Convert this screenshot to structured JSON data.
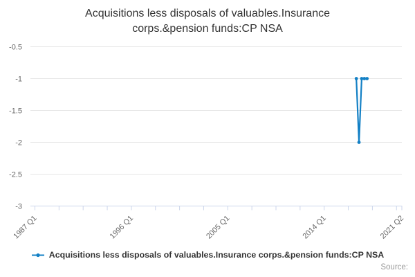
{
  "title": {
    "text": "Acquisitions less disposals of valuables.Insurance corps.&pension funds:CP NSA",
    "line1": "Acquisitions less disposals of valuables.Insurance",
    "line2": "corps.&pension funds:CP NSA"
  },
  "chart_data": {
    "type": "line",
    "title": "Acquisitions less disposals of valuables.Insurance corps.&pension funds:CP NSA",
    "x_axis": {
      "range_start": "1987 Q1",
      "range_end": "2021 Q2",
      "label_ticks": [
        "1987 Q1",
        "1996 Q1",
        "2005 Q1",
        "2014 Q1",
        "2021 Q2"
      ],
      "minor_tick_every_quarters": 9,
      "labels_rotation_deg": -45
    },
    "y_axis": {
      "tick_values": [
        -0.5,
        -1,
        -1.5,
        -2,
        -2.5,
        -3
      ],
      "min": -3,
      "max": -0.5
    },
    "grid": true,
    "legend_position": "bottom",
    "series": [
      {
        "name": "Acquisitions less disposals of valuables.Insurance corps.&pension funds:CP NSA",
        "color": "#1380c5",
        "points": [
          {
            "period": "2017 Q1",
            "value": -1
          },
          {
            "period": "2017 Q2",
            "value": -2
          },
          {
            "period": "2017 Q3",
            "value": -1
          },
          {
            "period": "2017 Q4",
            "value": -1
          },
          {
            "period": "2018 Q1",
            "value": -1
          }
        ]
      }
    ]
  },
  "legend": {
    "marker": "line-with-dot",
    "label": "Acquisitions less disposals of valuables.Insurance corps.&pension funds:CP NSA"
  },
  "footer": {
    "source_label": "Source:"
  },
  "colors": {
    "accent_blue": "#1380c5",
    "gridline": "#e6e6e6",
    "axis_line": "#ccd6eb",
    "axis_label": "#666666",
    "title_text": "#333333",
    "legend_text": "#333333",
    "source_text": "#999999"
  }
}
